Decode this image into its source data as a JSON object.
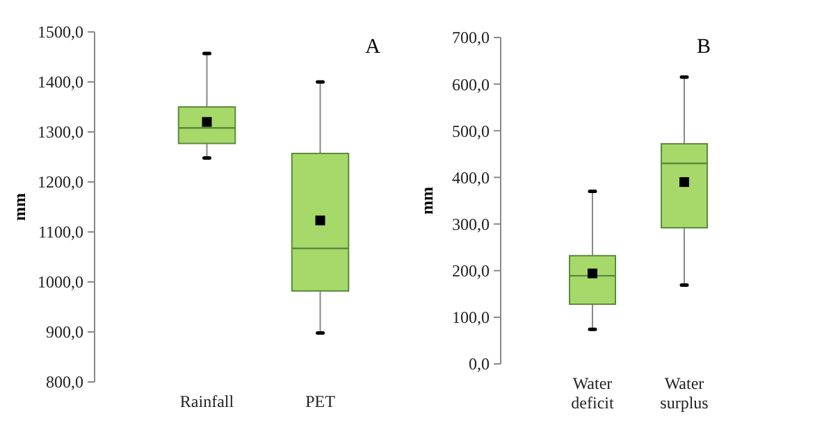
{
  "chart_data": [
    {
      "type": "box",
      "title": "A",
      "ylabel": "mm",
      "categories": [
        "Rainfall",
        "PET"
      ],
      "color": "#a6d96a",
      "grid": false,
      "marker": "square",
      "ylim": [
        800,
        1500
      ],
      "yticks": [
        {
          "value": 800,
          "label": "800,0"
        },
        {
          "value": 900,
          "label": "900,0"
        },
        {
          "value": 1000,
          "label": "1000,0"
        },
        {
          "value": 1100,
          "label": "1100,0"
        },
        {
          "value": 1200,
          "label": "1200,0"
        },
        {
          "value": 1300,
          "label": "1300,0"
        },
        {
          "value": 1400,
          "label": "1400,0"
        },
        {
          "value": 1500,
          "label": "1500,0"
        }
      ],
      "boxes": [
        {
          "low": 1248,
          "q1": 1277,
          "median": 1308,
          "q3": 1350,
          "high": 1457,
          "mean": 1320
        },
        {
          "low": 898,
          "q1": 982,
          "median": 1067,
          "q3": 1257,
          "high": 1400,
          "mean": 1123
        }
      ]
    },
    {
      "type": "box",
      "title": "B",
      "ylabel": "mm",
      "categories": [
        "Water deficit",
        "Water surplus"
      ],
      "color": "#a6d96a",
      "grid": false,
      "marker": "square",
      "ylim": [
        0,
        700
      ],
      "yticks": [
        {
          "value": 0,
          "label": "0,0"
        },
        {
          "value": 100,
          "label": "100,0"
        },
        {
          "value": 200,
          "label": "200,0"
        },
        {
          "value": 300,
          "label": "300,0"
        },
        {
          "value": 400,
          "label": "400,0"
        },
        {
          "value": 500,
          "label": "500,0"
        },
        {
          "value": 600,
          "label": "600,0"
        },
        {
          "value": 700,
          "label": "700,0"
        }
      ],
      "boxes": [
        {
          "low": 74,
          "q1": 128,
          "median": 189,
          "q3": 232,
          "high": 370,
          "mean": 194
        },
        {
          "low": 169,
          "q1": 292,
          "median": 430,
          "q3": 472,
          "high": 615,
          "mean": 390
        }
      ]
    }
  ]
}
